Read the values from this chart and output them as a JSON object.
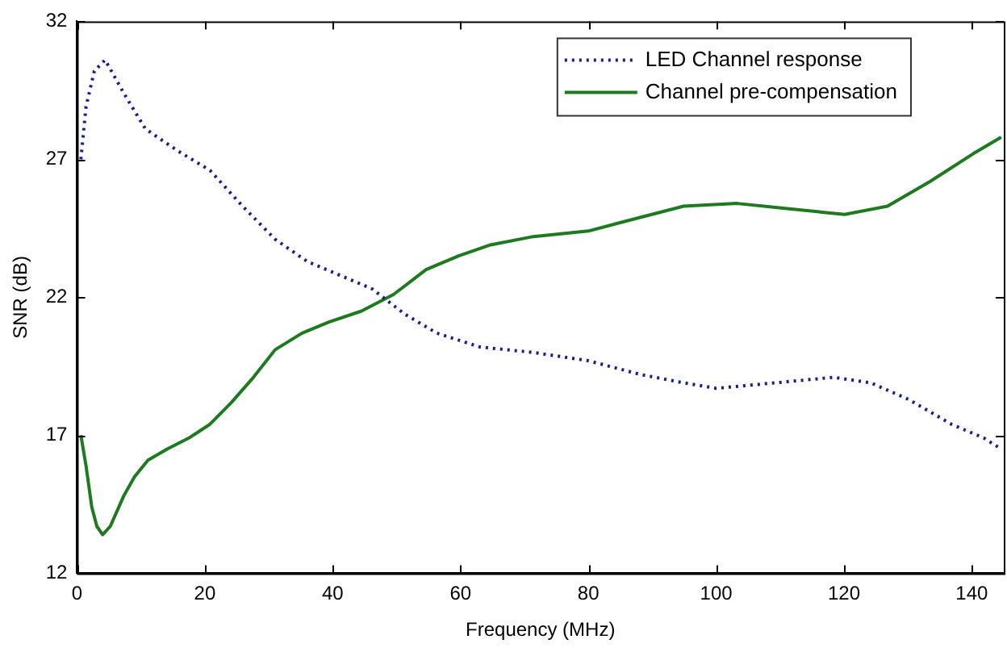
{
  "chart_data": {
    "type": "line",
    "xlabel": "Frequency (MHz)",
    "ylabel": "SNR (dB)",
    "xlim": [
      0,
      145
    ],
    "xticks": [
      0,
      20,
      40,
      60,
      80,
      100,
      120,
      140
    ],
    "ylim": [
      12,
      32
    ],
    "yticks": [
      12,
      17,
      22,
      27,
      32
    ],
    "grid": false,
    "legend": "top right",
    "marker": "none",
    "series": [
      {
        "name": "LED Channel response",
        "color": "#1c1c8a",
        "line_style": "dotted",
        "x": [
          0.6,
          1.4,
          2.7,
          4.4,
          7.3,
          10.7,
          15.8,
          20.8,
          25.9,
          31,
          36,
          41.1,
          46.2,
          51.2,
          56.3,
          63,
          71.4,
          80,
          88.2,
          94.9,
          100,
          109.2,
          118.4,
          124.2,
          130.1,
          136.8,
          141.9,
          144.6
        ],
        "values": [
          27.0,
          28.9,
          30.2,
          30.6,
          29.4,
          28.1,
          27.3,
          26.6,
          25.3,
          24.1,
          23.3,
          22.8,
          22.3,
          21.4,
          20.7,
          20.2,
          20.0,
          19.7,
          19.2,
          18.9,
          18.7,
          18.9,
          19.1,
          18.9,
          18.3,
          17.4,
          16.9,
          16.5
        ]
      },
      {
        "name": "Channel pre-compensation",
        "color": "#1e7a1e",
        "line_style": "solid",
        "x": [
          0.6,
          1.4,
          2.3,
          3.1,
          4.0,
          5.2,
          7.3,
          9.0,
          11.1,
          14.1,
          17.5,
          20.8,
          24.2,
          27.6,
          31,
          35.2,
          39.4,
          44.5,
          49.5,
          54.6,
          59.7,
          64.7,
          71.4,
          80,
          88.2,
          94.9,
          103.3,
          111.7,
          120.1,
          126.8,
          133.5,
          140.2,
          144.6
        ],
        "values": [
          17.0,
          15.9,
          14.4,
          13.7,
          13.4,
          13.7,
          14.8,
          15.5,
          16.1,
          16.5,
          16.9,
          17.4,
          18.2,
          19.1,
          20.1,
          20.7,
          21.1,
          21.5,
          22.1,
          23.0,
          23.5,
          23.9,
          24.2,
          24.4,
          24.9,
          25.3,
          25.4,
          25.2,
          25.0,
          25.3,
          26.2,
          27.2,
          27.8
        ]
      }
    ]
  }
}
